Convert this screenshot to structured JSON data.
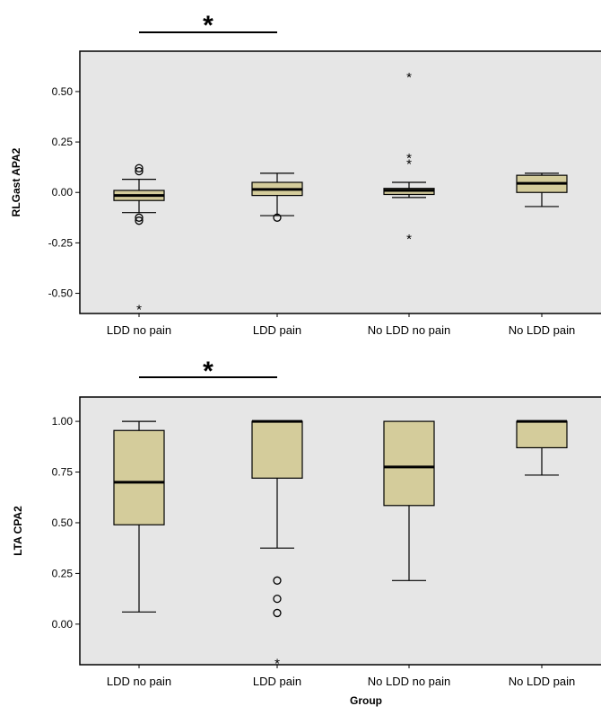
{
  "chart_data": [
    {
      "type": "box",
      "ylabel": "RLGast APA2",
      "xlabel": "",
      "ylim": [
        -0.6,
        0.7
      ],
      "yticks": [
        "0.50",
        "0.25",
        "0.00",
        "-0.25",
        "-0.50"
      ],
      "ytick_values": [
        0.5,
        0.25,
        0.0,
        -0.25,
        -0.5
      ],
      "categories": [
        "LDD no pain",
        "LDD pain",
        "No LDD no pain",
        "No LDD pain"
      ],
      "boxes": [
        {
          "whisker_low": -0.1,
          "q1": -0.04,
          "median": -0.015,
          "q3": 0.01,
          "whisker_high": 0.065,
          "outliers": [
            0.12,
            0.105,
            -0.125,
            -0.14
          ],
          "extremes": [
            -0.575
          ]
        },
        {
          "whisker_low": -0.115,
          "q1": -0.015,
          "median": 0.015,
          "q3": 0.05,
          "whisker_high": 0.095,
          "outliers": [
            -0.125
          ],
          "extremes": []
        },
        {
          "whisker_low": -0.025,
          "q1": -0.01,
          "median": 0.01,
          "q3": 0.02,
          "whisker_high": 0.05,
          "outliers": [],
          "extremes": [
            0.575,
            0.175,
            0.145,
            -0.225
          ]
        },
        {
          "whisker_low": -0.07,
          "q1": 0.0,
          "median": 0.045,
          "q3": 0.085,
          "whisker_high": 0.095,
          "outliers": [],
          "extremes": []
        }
      ],
      "significance": {
        "from": "LDD no pain",
        "to": "LDD pain",
        "label": "*"
      }
    },
    {
      "type": "box",
      "ylabel": "LTA CPA2",
      "xlabel": "Group",
      "ylim": [
        -0.2,
        1.12
      ],
      "yticks": [
        "1.00",
        "0.75",
        "0.50",
        "0.25",
        "0.00"
      ],
      "ytick_values": [
        1.0,
        0.75,
        0.5,
        0.25,
        0.0
      ],
      "categories": [
        "LDD no pain",
        "LDD pain",
        "No LDD no pain",
        "No LDD pain"
      ],
      "boxes": [
        {
          "whisker_low": 0.06,
          "q1": 0.49,
          "median": 0.7,
          "q3": 0.955,
          "whisker_high": 1.0,
          "outliers": [],
          "extremes": []
        },
        {
          "whisker_low": 0.375,
          "q1": 0.72,
          "median": 1.0,
          "q3": 1.0,
          "whisker_high": 1.0,
          "outliers": [
            0.215,
            0.125,
            0.055
          ],
          "extremes": [
            -0.19
          ]
        },
        {
          "whisker_low": 0.215,
          "q1": 0.585,
          "median": 0.775,
          "q3": 1.0,
          "whisker_high": 1.0,
          "outliers": [],
          "extremes": []
        },
        {
          "whisker_low": 0.735,
          "q1": 0.87,
          "median": 1.0,
          "q3": 1.0,
          "whisker_high": 1.0,
          "outliers": [],
          "extremes": []
        }
      ],
      "significance": {
        "from": "LDD no pain",
        "to": "LDD pain",
        "label": "*"
      }
    }
  ],
  "colors": {
    "plot_background": "#e6e6e6",
    "box_fill": "#d4cc9b",
    "stroke": "#000000"
  }
}
